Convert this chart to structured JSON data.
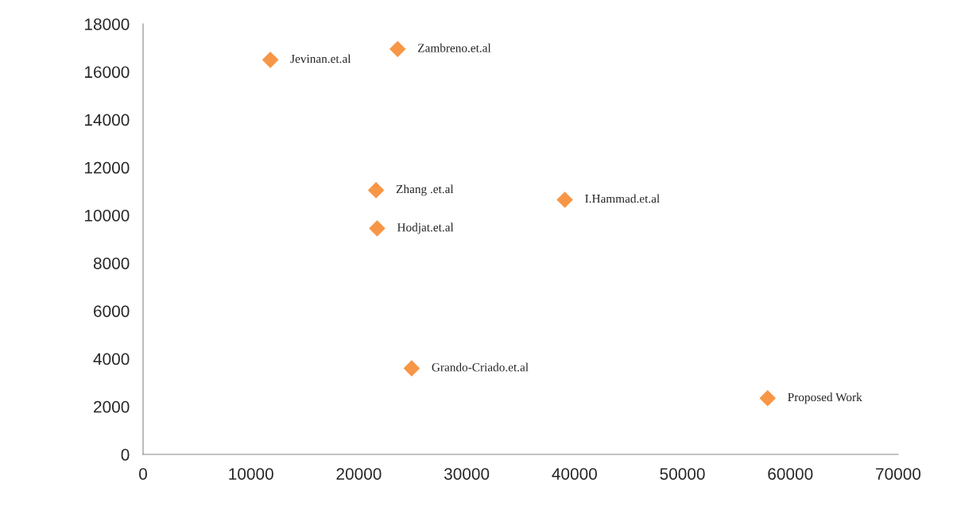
{
  "chart_data": {
    "type": "scatter",
    "x": [
      11800,
      23600,
      21600,
      21700,
      39100,
      24900,
      57900
    ],
    "values": [
      16500,
      16950,
      11050,
      9450,
      10650,
      3600,
      2350
    ],
    "color": "#f79646",
    "marker": "diamond",
    "grid": false,
    "xlim": [
      0,
      70000
    ],
    "xticks": [
      0,
      10000,
      20000,
      30000,
      40000,
      50000,
      60000,
      70000
    ],
    "ylim": [
      0,
      18000
    ],
    "yticks": [
      0,
      2000,
      4000,
      6000,
      8000,
      10000,
      12000,
      14000,
      16000,
      18000
    ],
    "annotations": [
      {
        "text": "Jevinan.et.al",
        "x": 11800,
        "y": 16500
      },
      {
        "text": "Zambreno.et.al",
        "x": 23600,
        "y": 16950
      },
      {
        "text": "Zhang .et.al",
        "x": 21600,
        "y": 11050
      },
      {
        "text": "Hodjat.et.al",
        "x": 21700,
        "y": 9450
      },
      {
        "text": "I.Hammad.et.al",
        "x": 39100,
        "y": 10650
      },
      {
        "text": "Grando-Criado.et.al",
        "x": 24900,
        "y": 3600
      },
      {
        "text": "Proposed Work",
        "x": 57900,
        "y": 2350
      }
    ]
  }
}
